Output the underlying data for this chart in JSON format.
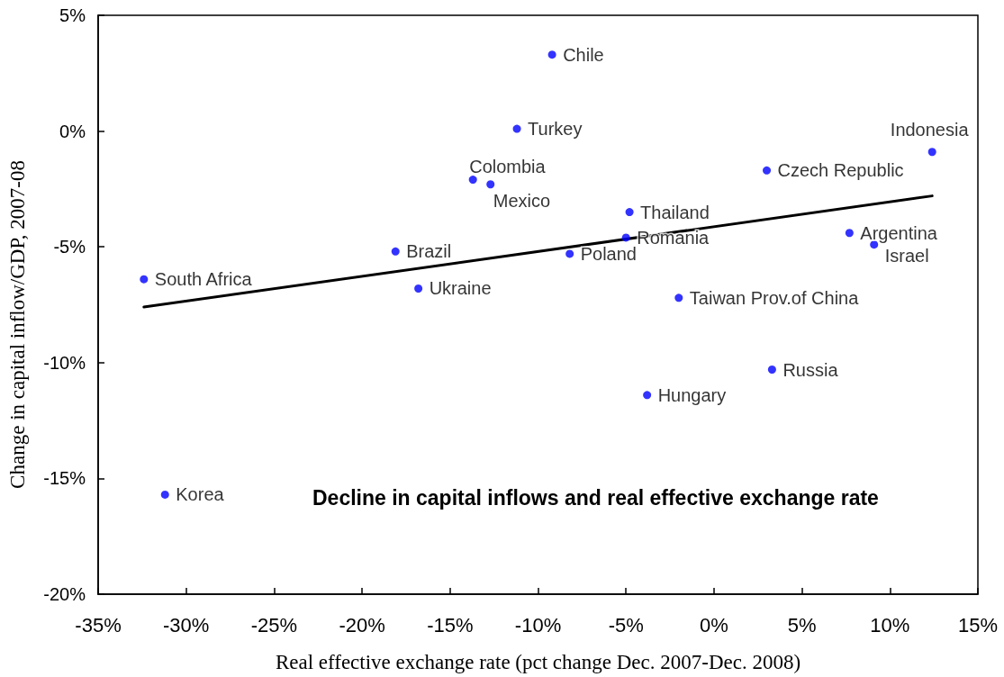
{
  "chart_data": {
    "type": "scatter",
    "title": "Decline in capital inflows and real effective exchange rate",
    "xlabel": "Real effective exchange rate (pct change Dec. 2007-Dec. 2008)",
    "ylabel": "Change in capital inflow/GDP, 2007-08",
    "xlim": [
      -35,
      15
    ],
    "xticks": [
      {
        "value": -35,
        "label": "-35%"
      },
      {
        "value": -30,
        "label": "-30%"
      },
      {
        "value": -25,
        "label": "-25%"
      },
      {
        "value": -20,
        "label": "-20%"
      },
      {
        "value": -15,
        "label": "-15%"
      },
      {
        "value": -10,
        "label": "-10%"
      },
      {
        "value": -5,
        "label": "-5%"
      },
      {
        "value": 0,
        "label": "0%"
      },
      {
        "value": 5,
        "label": "5%"
      },
      {
        "value": 10,
        "label": "10%"
      },
      {
        "value": 15,
        "label": "15%"
      }
    ],
    "ylim": [
      -20,
      5
    ],
    "yticks": [
      {
        "value": -20,
        "label": "-20%"
      },
      {
        "value": -15,
        "label": "-15%"
      },
      {
        "value": -10,
        "label": "-10%"
      },
      {
        "value": -5,
        "label": "-5%"
      },
      {
        "value": 0,
        "label": "0%"
      },
      {
        "value": 5,
        "label": "5%"
      }
    ],
    "marker": "circle",
    "series": [
      {
        "color": "#0000ff",
        "x": [
          -32.4,
          -31.2,
          -18.1,
          -16.8,
          -13.7,
          -12.7,
          -11.2,
          -9.2,
          -8.2,
          -5.0,
          -4.8,
          -3.8,
          -2.0,
          3.0,
          3.3,
          7.7,
          9.1,
          12.4
        ],
        "values": [
          -6.4,
          -15.7,
          -5.2,
          -6.8,
          -2.1,
          -2.3,
          0.1,
          3.3,
          -5.3,
          -4.6,
          -3.5,
          -11.4,
          -7.2,
          -1.7,
          -10.3,
          -4.4,
          -4.9,
          -0.9
        ]
      },
      {
        "type": "line",
        "color": "#000000",
        "marker": "none",
        "x": [
          -32.4,
          12.4
        ],
        "values": [
          -7.6,
          -2.8
        ]
      }
    ],
    "annotations": [
      {
        "text": "South Africa",
        "x": -32.4,
        "y": -6.4
      },
      {
        "text": "Korea",
        "x": -31.2,
        "y": -15.7
      },
      {
        "text": "Brazil",
        "x": -18.1,
        "y": -5.2
      },
      {
        "text": "Ukraine",
        "x": -16.8,
        "y": -6.8
      },
      {
        "text": "Colombia",
        "x": -13.7,
        "y": -2.1
      },
      {
        "text": "Mexico",
        "x": -12.7,
        "y": -2.3
      },
      {
        "text": "Turkey",
        "x": -11.2,
        "y": 0.1
      },
      {
        "text": "Chile",
        "x": -9.2,
        "y": 3.3
      },
      {
        "text": "Poland",
        "x": -8.2,
        "y": -5.3
      },
      {
        "text": "Romania",
        "x": -5.0,
        "y": -4.6
      },
      {
        "text": "Thailand",
        "x": -4.8,
        "y": -3.5
      },
      {
        "text": "Hungary",
        "x": -3.8,
        "y": -11.4
      },
      {
        "text": "Taiwan Prov.of China",
        "x": -2.0,
        "y": -7.2
      },
      {
        "text": "Czech Republic",
        "x": 3.0,
        "y": -1.7
      },
      {
        "text": "Russia",
        "x": 3.3,
        "y": -10.3
      },
      {
        "text": "Argentina",
        "x": 7.7,
        "y": -4.4
      },
      {
        "text": "Israel",
        "x": 9.1,
        "y": -4.9
      },
      {
        "text": "Indonesia",
        "x": 12.4,
        "y": -0.9
      }
    ]
  }
}
